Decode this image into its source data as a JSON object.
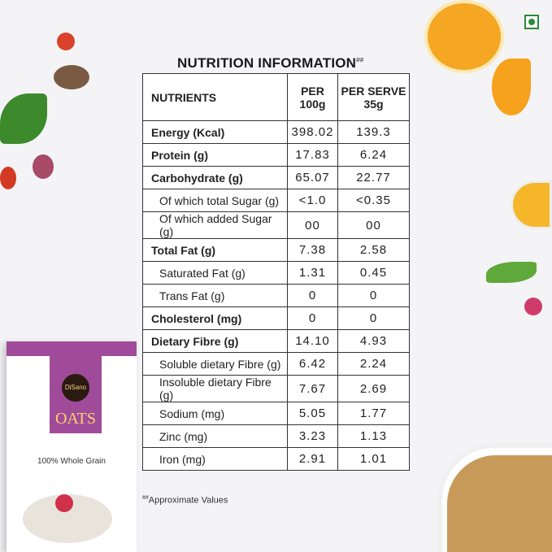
{
  "title": "NUTRITION INFORMATION",
  "title_mark": "##",
  "headers": {
    "nutrients": "NUTRIENTS",
    "per100_line1": "PER",
    "per100_line2": "100g",
    "serve_line1": "PER SERVE",
    "serve_line2": "35g"
  },
  "rows": [
    {
      "name": "Energy (Kcal)",
      "per100": "398.02",
      "serve": "139.3"
    },
    {
      "name": "Protein (g)",
      "per100": "17.83",
      "serve": "6.24"
    },
    {
      "name": "Carbohydrate (g)",
      "per100": "65.07",
      "serve": "22.77"
    },
    {
      "name": "Of which total Sugar (g)",
      "per100": "<1.0",
      "serve": "<0.35"
    },
    {
      "name": "Of which added Sugar (g)",
      "per100": "00",
      "serve": "00"
    },
    {
      "name": "Total Fat (g)",
      "per100": "7.38",
      "serve": "2.58"
    },
    {
      "name": "Saturated Fat (g)",
      "per100": "1.31",
      "serve": "0.45"
    },
    {
      "name": "Trans Fat (g)",
      "per100": "0",
      "serve": "0"
    },
    {
      "name": "Cholesterol (mg)",
      "per100": "0",
      "serve": "0"
    },
    {
      "name": "Dietary Fibre (g)",
      "per100": "14.10",
      "serve": "4.93"
    },
    {
      "name": "Soluble dietary Fibre (g)",
      "per100": "6.42",
      "serve": "2.24"
    },
    {
      "name": "Insoluble dietary Fibre (g)",
      "per100": "7.67",
      "serve": "2.69"
    },
    {
      "name": "Sodium (mg)",
      "per100": "5.05",
      "serve": "1.77"
    },
    {
      "name": "Zinc (mg)",
      "per100": "3.23",
      "serve": "1.13"
    },
    {
      "name": "Iron (mg)",
      "per100": "2.91",
      "serve": "1.01"
    }
  ],
  "footnote_mark": "##",
  "footnote": "Approximate Values",
  "pack": {
    "brand": "DiSano",
    "product": "OATS",
    "tagline": "100% Whole Grain"
  }
}
